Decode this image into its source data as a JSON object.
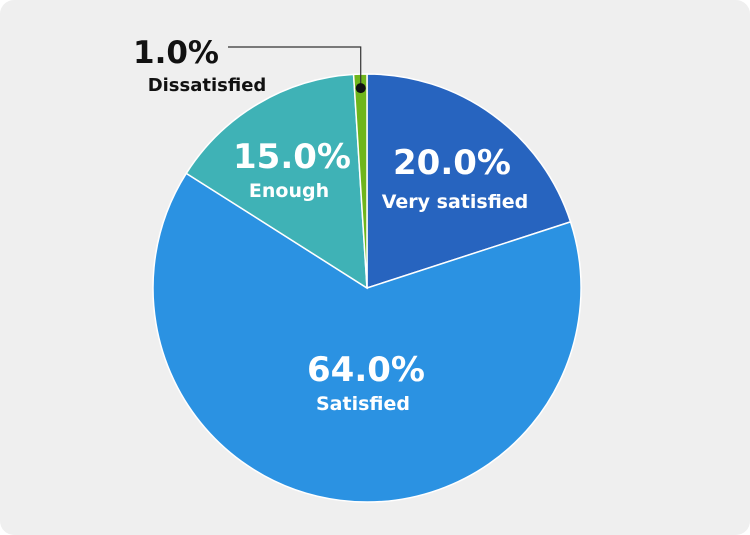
{
  "chart_data": {
    "type": "pie",
    "slices": [
      {
        "label": "Very satisfied",
        "value": 20.0,
        "value_label": "20.0%",
        "color": "#2764bf"
      },
      {
        "label": "Satisfied",
        "value": 64.0,
        "value_label": "64.0%",
        "color": "#2b92e2"
      },
      {
        "label": "Enough",
        "value": 15.0,
        "value_label": "15.0%",
        "color": "#3fb2b6"
      },
      {
        "label": "Dissatisfied",
        "value": 1.0,
        "value_label": "1.0%",
        "color": "#6fb51c"
      }
    ],
    "start_angle": "12 o'clock",
    "direction": "clockwise"
  }
}
